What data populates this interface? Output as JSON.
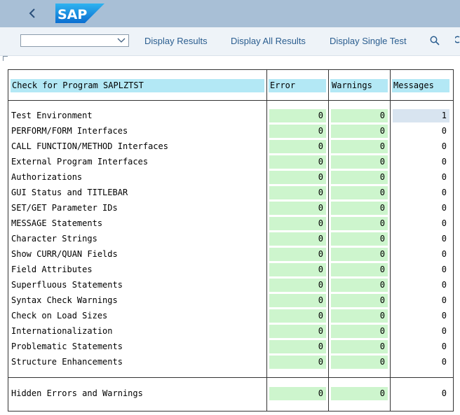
{
  "header": {
    "logo_text": "SAP"
  },
  "toolbar": {
    "combo_value": "",
    "buttons": [
      "Display Results",
      "Display All Results",
      "Display Single Test"
    ]
  },
  "table": {
    "columns": [
      "Check for Program SAPLZTST",
      "Error",
      "Warnings",
      "Messages"
    ],
    "rows": [
      {
        "label": "Test Environment",
        "error": "0",
        "warnings": "0",
        "messages": "1"
      },
      {
        "label": "PERFORM/FORM Interfaces",
        "error": "0",
        "warnings": "0",
        "messages": "0"
      },
      {
        "label": "CALL FUNCTION/METHOD Interfaces",
        "error": "0",
        "warnings": "0",
        "messages": "0"
      },
      {
        "label": "External Program Interfaces",
        "error": "0",
        "warnings": "0",
        "messages": "0"
      },
      {
        "label": "Authorizations",
        "error": "0",
        "warnings": "0",
        "messages": "0"
      },
      {
        "label": "GUI Status and TITLEBAR",
        "error": "0",
        "warnings": "0",
        "messages": "0"
      },
      {
        "label": "SET/GET Parameter IDs",
        "error": "0",
        "warnings": "0",
        "messages": "0"
      },
      {
        "label": "MESSAGE Statements",
        "error": "0",
        "warnings": "0",
        "messages": "0"
      },
      {
        "label": "Character Strings",
        "error": "0",
        "warnings": "0",
        "messages": "0"
      },
      {
        "label": "Show CURR/QUAN Fields",
        "error": "0",
        "warnings": "0",
        "messages": "0"
      },
      {
        "label": "Field Attributes",
        "error": "0",
        "warnings": "0",
        "messages": "0"
      },
      {
        "label": "Superfluous Statements",
        "error": "0",
        "warnings": "0",
        "messages": "0"
      },
      {
        "label": "Syntax Check Warnings",
        "error": "0",
        "warnings": "0",
        "messages": "0"
      },
      {
        "label": "Check on Load Sizes",
        "error": "0",
        "warnings": "0",
        "messages": "0"
      },
      {
        "label": "Internationalization",
        "error": "0",
        "warnings": "0",
        "messages": "0"
      },
      {
        "label": "Problematic Statements",
        "error": "0",
        "warnings": "0",
        "messages": "0"
      },
      {
        "label": "Structure Enhancements",
        "error": "0",
        "warnings": "0",
        "messages": "0"
      }
    ],
    "summary": {
      "label": "Hidden Errors and Warnings",
      "error": "0",
      "warnings": "0",
      "messages": "0"
    }
  },
  "colors": {
    "header_bg": "#a8bfd6",
    "column_header": "#b3e8f5",
    "zero_cell": "#cdf5cd",
    "nonzero_cell": "#d8e4f0",
    "link": "#2a5d8f"
  },
  "icons": [
    "back-chevron-icon",
    "sap-logo",
    "chevron-down-icon",
    "search-icon"
  ]
}
